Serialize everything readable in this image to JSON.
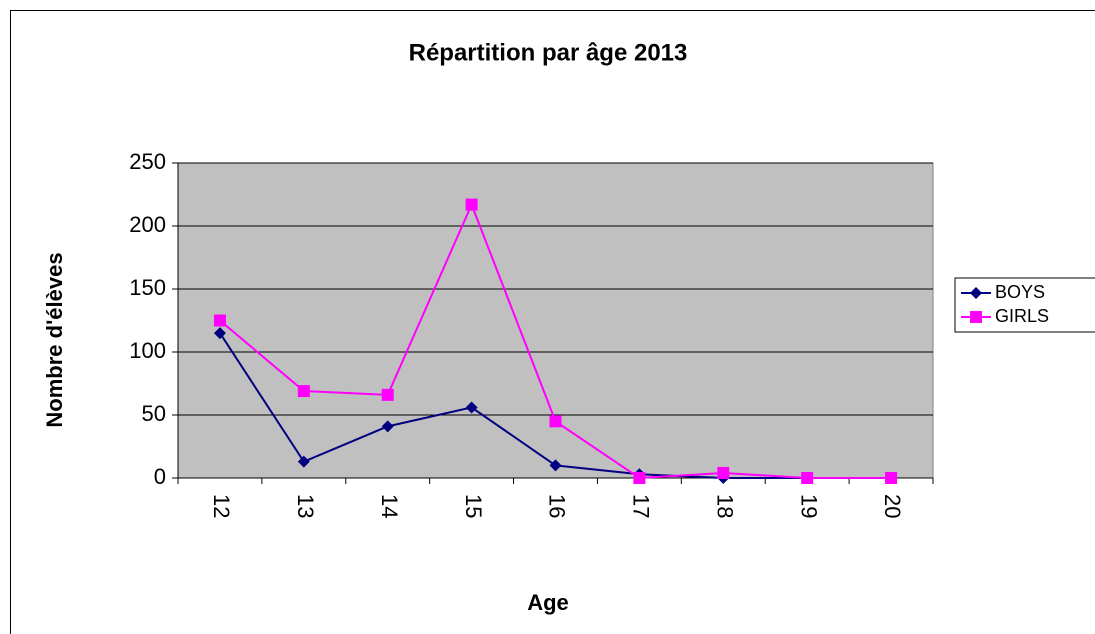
{
  "chart_data": {
    "type": "line",
    "title": "Répartition par âge 2013",
    "x_label": "Age",
    "y_label": "Nombre d'élèves",
    "categories": [
      "12",
      "13",
      "14",
      "15",
      "16",
      "17",
      "18",
      "19",
      "20"
    ],
    "series": [
      {
        "name": "BOYS",
        "color": "#000080",
        "marker": "diamond",
        "values": [
          115,
          13,
          41,
          56,
          10,
          3,
          0,
          0,
          0
        ]
      },
      {
        "name": "GIRLS",
        "color": "#ff00ff",
        "marker": "square",
        "values": [
          125,
          69,
          66,
          217,
          45,
          0,
          4,
          0,
          0
        ]
      }
    ],
    "ylim": [
      0,
      250
    ],
    "yticks": [
      0,
      50,
      100,
      150,
      200,
      250
    ],
    "grid": true,
    "legend": "right"
  }
}
